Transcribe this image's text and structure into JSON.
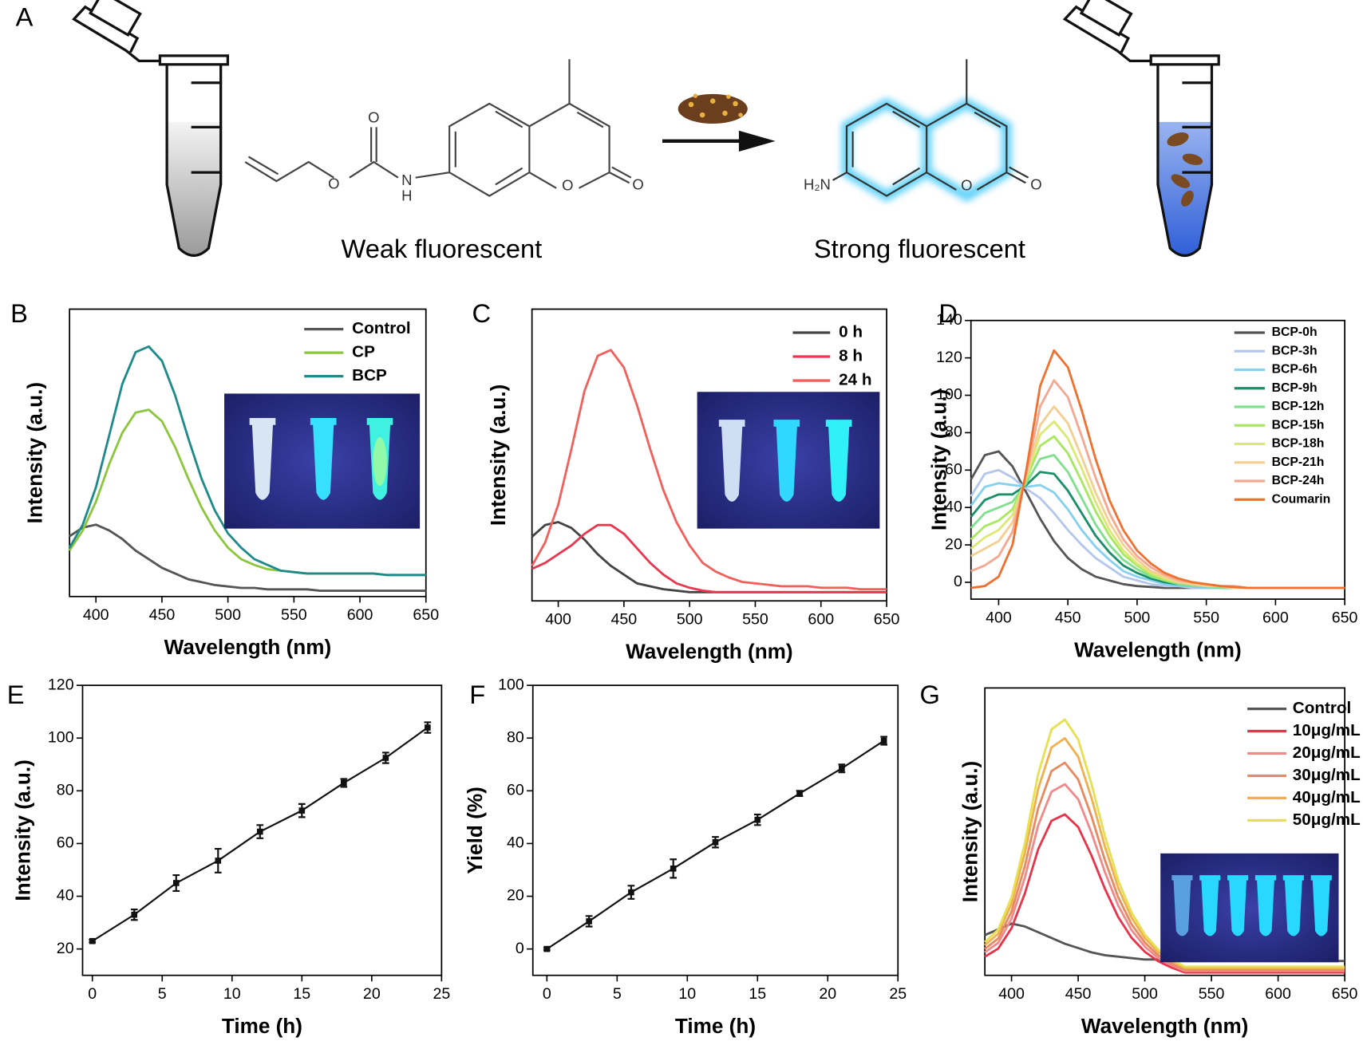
{
  "panel_a": {
    "label": "A",
    "left_caption": "Weak fluorescent",
    "right_caption": "Strong fluorescent",
    "left_atoms": [
      "O",
      "O",
      "N",
      "H",
      "O",
      "O"
    ],
    "right_atoms": [
      "H₂N",
      "O",
      "O"
    ]
  },
  "chart_data": [
    {
      "panel": "B",
      "type": "line",
      "x_label": "Wavelength (nm)",
      "y_label": "Intensity (a.u.)",
      "x": [
        380,
        390,
        400,
        410,
        420,
        430,
        440,
        450,
        460,
        470,
        480,
        490,
        500,
        510,
        520,
        530,
        540,
        550,
        560,
        570,
        580,
        590,
        600,
        610,
        620,
        630,
        640,
        650
      ],
      "series": [
        {
          "name": "Control",
          "color": "#555555",
          "values": [
            21,
            24,
            25,
            23,
            20,
            16,
            13,
            10,
            8,
            6,
            5,
            4,
            3.5,
            3,
            3,
            2.5,
            2.5,
            2.5,
            2.5,
            2,
            2,
            2,
            2,
            2,
            2,
            2,
            2,
            2
          ]
        },
        {
          "name": "CP",
          "color": "#8cc63f",
          "values": [
            16,
            23,
            33,
            46,
            57,
            64,
            65,
            61,
            52,
            41,
            31,
            23,
            17,
            13,
            11,
            9.5,
            9,
            8.5,
            8,
            8,
            8,
            8,
            8,
            8,
            7.5,
            7.5,
            7.5,
            7.5
          ]
        },
        {
          "name": "BCP",
          "color": "#1f8a8a",
          "values": [
            17,
            25,
            38,
            56,
            74,
            85,
            87,
            82,
            70,
            55,
            41,
            30,
            22,
            17,
            13,
            11,
            9,
            8.5,
            8,
            8,
            8,
            8,
            8,
            8,
            7.5,
            7.5,
            7.5,
            7.5
          ]
        }
      ],
      "xlim": [
        380,
        650
      ],
      "ylim": [
        0,
        100
      ],
      "xticks": [
        400,
        450,
        500,
        550,
        600,
        650
      ],
      "legend": "upper right"
    },
    {
      "panel": "C",
      "type": "line",
      "x_label": "Wavelength (nm)",
      "y_label": "Intensity (a.u.)",
      "x": [
        380,
        390,
        400,
        410,
        420,
        430,
        440,
        450,
        460,
        470,
        480,
        490,
        500,
        510,
        520,
        530,
        540,
        550,
        560,
        570,
        580,
        590,
        600,
        610,
        620,
        630,
        640,
        650
      ],
      "series": [
        {
          "name": "0 h",
          "color": "#444444",
          "values": [
            22,
            26,
            27,
            25,
            21,
            16,
            12,
            9,
            6,
            5,
            4,
            3.5,
            3,
            3,
            3,
            3,
            3,
            3,
            3,
            3,
            3,
            3,
            3,
            3,
            3,
            3,
            3,
            3
          ]
        },
        {
          "name": "8 h",
          "color": "#e8384f",
          "values": [
            11,
            13,
            16,
            19,
            23,
            26,
            26,
            23,
            18,
            13,
            9,
            6,
            4.5,
            3.5,
            3,
            3,
            3,
            3,
            3,
            3,
            3,
            3,
            3,
            3,
            3,
            3,
            3,
            3
          ]
        },
        {
          "name": "24 h",
          "color": "#f2605c",
          "values": [
            12,
            20,
            33,
            52,
            72,
            84,
            86,
            80,
            67,
            52,
            38,
            27,
            19,
            13,
            10,
            8,
            6.5,
            6,
            5.5,
            5,
            5,
            5,
            4.5,
            4.5,
            4.5,
            4,
            4,
            4
          ]
        }
      ],
      "xlim": [
        380,
        650
      ],
      "ylim": [
        0,
        100
      ],
      "xticks": [
        400,
        450,
        500,
        550,
        600,
        650
      ],
      "legend": "upper right"
    },
    {
      "panel": "D",
      "type": "line",
      "x_label": "Wavelength (nm)",
      "y_label": "Intensity (a.u.)",
      "x": [
        380,
        390,
        400,
        410,
        420,
        430,
        440,
        450,
        460,
        470,
        480,
        490,
        500,
        510,
        520,
        530,
        540,
        550,
        560,
        570,
        580,
        590,
        600,
        610,
        620,
        630,
        640,
        650
      ],
      "series": [
        {
          "name": "BCP-0h",
          "color": "#555555",
          "values": [
            55,
            68,
            70,
            62,
            48,
            34,
            22,
            13,
            7,
            3,
            1,
            -1,
            -2,
            -2.5,
            -3,
            -3,
            -3,
            -3,
            -3,
            -3,
            -3,
            -3,
            -3,
            -3,
            -3,
            -3,
            -3,
            -3
          ]
        },
        {
          "name": "BCP-3h",
          "color": "#b4c6ea",
          "values": [
            46,
            58,
            60,
            56,
            50,
            45,
            37,
            28,
            20,
            13,
            8,
            3,
            1,
            -1,
            -2,
            -2,
            -3,
            -3,
            -3,
            -3,
            -3,
            -3,
            -3,
            -3,
            -3,
            -3,
            -3,
            -3
          ]
        },
        {
          "name": "BCP-6h",
          "color": "#86d0f0",
          "values": [
            41,
            51,
            53,
            52,
            51,
            52,
            48,
            39,
            28,
            19,
            12,
            6,
            3,
            1,
            -1,
            -2,
            -2,
            -3,
            -3,
            -3,
            -3,
            -3,
            -3,
            -3,
            -3,
            -3,
            -3,
            -3
          ]
        },
        {
          "name": "BCP-9h",
          "color": "#1a8f6a",
          "values": [
            35,
            44,
            47,
            47,
            52,
            59,
            58,
            49,
            37,
            25,
            16,
            9,
            5,
            2,
            0,
            -1,
            -2,
            -2,
            -3,
            -3,
            -3,
            -3,
            -3,
            -3,
            -3,
            -3,
            -3,
            -3
          ]
        },
        {
          "name": "BCP-12h",
          "color": "#7fe08e",
          "values": [
            29,
            37,
            40,
            43,
            53,
            66,
            68,
            59,
            45,
            31,
            20,
            12,
            7,
            3,
            1,
            -1,
            -2,
            -2,
            -3,
            -3,
            -3,
            -3,
            -3,
            -3,
            -3,
            -3,
            -3,
            -3
          ]
        },
        {
          "name": "BCP-15h",
          "color": "#a8e860",
          "values": [
            23,
            30,
            33,
            39,
            55,
            73,
            78,
            69,
            54,
            38,
            25,
            15,
            9,
            4,
            1,
            0,
            -1,
            -2,
            -2,
            -3,
            -3,
            -3,
            -3,
            -3,
            -3,
            -3,
            -3,
            -3
          ]
        },
        {
          "name": "BCP-18h",
          "color": "#dce874",
          "values": [
            18,
            24,
            28,
            36,
            56,
            79,
            86,
            77,
            61,
            43,
            28,
            17,
            10,
            5,
            2,
            0,
            -1,
            -2,
            -2,
            -3,
            -3,
            -3,
            -3,
            -3,
            -3,
            -3,
            -3,
            -3
          ]
        },
        {
          "name": "BCP-21h",
          "color": "#f5cf92",
          "values": [
            14,
            18,
            22,
            32,
            57,
            84,
            94,
            85,
            67,
            48,
            32,
            20,
            12,
            6,
            3,
            0,
            -1,
            -2,
            -2,
            -3,
            -3,
            -3,
            -3,
            -3,
            -3,
            -3,
            -3,
            -3
          ]
        },
        {
          "name": "BCP-24h",
          "color": "#f4a892",
          "values": [
            6,
            9,
            14,
            27,
            58,
            94,
            108,
            99,
            78,
            56,
            37,
            23,
            14,
            8,
            4,
            1,
            0,
            -1,
            -2,
            -2,
            -3,
            -3,
            -3,
            -3,
            -3,
            -3,
            -3,
            -3
          ]
        },
        {
          "name": "Coumarin",
          "color": "#f07030",
          "values": [
            -3,
            -2,
            3,
            20,
            60,
            105,
            124,
            115,
            92,
            66,
            44,
            28,
            17,
            10,
            5,
            2,
            0,
            -1,
            -2,
            -2.5,
            -3,
            -3,
            -3,
            -3,
            -3,
            -3,
            -3,
            -3
          ]
        }
      ],
      "xlim": [
        380,
        650
      ],
      "ylim": [
        -9,
        140
      ],
      "xticks": [
        400,
        450,
        500,
        550,
        600,
        650
      ],
      "yticks": [
        0,
        20,
        40,
        60,
        80,
        100,
        120,
        140
      ],
      "legend": "upper right"
    },
    {
      "panel": "E",
      "type": "line",
      "x_label": "Time (h)",
      "y_label": "Intensity (a.u.)",
      "x": [
        0,
        3,
        6,
        9,
        12,
        15,
        18,
        21,
        24
      ],
      "values": [
        23,
        33,
        45,
        53.5,
        64.5,
        72.5,
        83,
        92.5,
        104
      ],
      "errors": [
        0.5,
        2,
        3,
        4.5,
        2.5,
        2.5,
        1.5,
        2,
        2
      ],
      "color": "#111111",
      "xlim": [
        -0.7,
        25
      ],
      "ylim": [
        10,
        120
      ],
      "xticks": [
        0,
        5,
        10,
        15,
        20,
        25
      ],
      "yticks": [
        20,
        40,
        60,
        80,
        100,
        120
      ]
    },
    {
      "panel": "F",
      "type": "line",
      "x_label": "Time (h)",
      "y_label": "Yield (%)",
      "x": [
        0,
        3,
        6,
        9,
        12,
        15,
        18,
        21,
        24
      ],
      "values": [
        0,
        10.5,
        21.5,
        30.5,
        40.5,
        49,
        59,
        68.5,
        79
      ],
      "errors": [
        0.5,
        2,
        2.5,
        3.5,
        2,
        2,
        1,
        1.5,
        1.5
      ],
      "color": "#111111",
      "xlim": [
        -1,
        25
      ],
      "ylim": [
        -10,
        100
      ],
      "xticks": [
        0,
        5,
        10,
        15,
        20,
        25
      ],
      "yticks": [
        0,
        20,
        40,
        60,
        80,
        100
      ]
    },
    {
      "panel": "G",
      "type": "line",
      "x_label": "Wavelength (nm)",
      "y_label": "Intensity (a.u.)",
      "x": [
        380,
        390,
        400,
        410,
        420,
        430,
        440,
        450,
        460,
        470,
        480,
        490,
        500,
        510,
        520,
        530,
        540,
        550,
        560,
        570,
        580,
        590,
        600,
        610,
        620,
        630,
        640,
        650
      ],
      "series": [
        {
          "name": "Control",
          "color": "#555555",
          "values": [
            14,
            16,
            18,
            17,
            15,
            13,
            11,
            9.5,
            8,
            7,
            6.5,
            6,
            5.5,
            5.5,
            5,
            5,
            5,
            5,
            5,
            5,
            5,
            5,
            5,
            5,
            5,
            5,
            5,
            5
          ]
        },
        {
          "name": "10μg/mL",
          "color": "#e8334a",
          "values": [
            6.5,
            9.3,
            16.4,
            28.5,
            43.9,
            53.8,
            56,
            51.6,
            41.7,
            30.2,
            20.3,
            13.1,
            8.2,
            4.9,
            2.7,
            1,
            1,
            1,
            1,
            1,
            1,
            1,
            1,
            1,
            1,
            1,
            1,
            1
          ]
        },
        {
          "name": "20μg/mL",
          "color": "#f08a8a",
          "values": [
            8,
            11.3,
            19.7,
            34,
            52.2,
            63.9,
            66.5,
            61.3,
            49.6,
            36,
            24.3,
            15.8,
            10,
            6,
            3.5,
            1.5,
            1.5,
            1.5,
            1.5,
            1.5,
            1.5,
            1.5,
            1.5,
            1.5,
            1.5,
            1.5,
            1.5,
            1.5
          ]
        },
        {
          "name": "30μg/mL",
          "color": "#e88a60",
          "values": [
            9.2,
            12.8,
            22.2,
            38,
            58.2,
            71.1,
            74,
            68.2,
            55.3,
            40.2,
            27.2,
            17.8,
            11.4,
            7,
            4.2,
            2,
            2,
            2,
            2,
            2,
            2,
            2,
            2,
            2,
            2,
            2,
            2,
            2
          ]
        },
        {
          "name": "40μg/mL",
          "color": "#f0b050",
          "values": [
            10.5,
            14.5,
            24.9,
            42.5,
            64.9,
            79.3,
            82.5,
            76.1,
            61.7,
            44.9,
            30.5,
            20.1,
            12.9,
            8.1,
            4.9,
            2.5,
            2.5,
            2.5,
            2.5,
            2.5,
            2.5,
            2.5,
            2.5,
            2.5,
            2.5,
            2.5,
            2.5,
            2.5
          ]
        },
        {
          "name": "50μg/mL",
          "color": "#e6e052",
          "values": [
            11.6,
            15.9,
            27.1,
            46,
            70.1,
            85.6,
            89,
            82.1,
            66.6,
            48.6,
            33.1,
            21.9,
            14.2,
            9,
            5.6,
            3,
            3,
            3,
            3,
            3,
            3,
            3,
            3,
            3,
            3,
            3,
            3,
            3
          ]
        }
      ],
      "xlim": [
        380,
        650
      ],
      "ylim": [
        0,
        100
      ],
      "xticks": [
        400,
        450,
        500,
        550,
        600,
        650
      ],
      "legend": "upper right"
    }
  ]
}
